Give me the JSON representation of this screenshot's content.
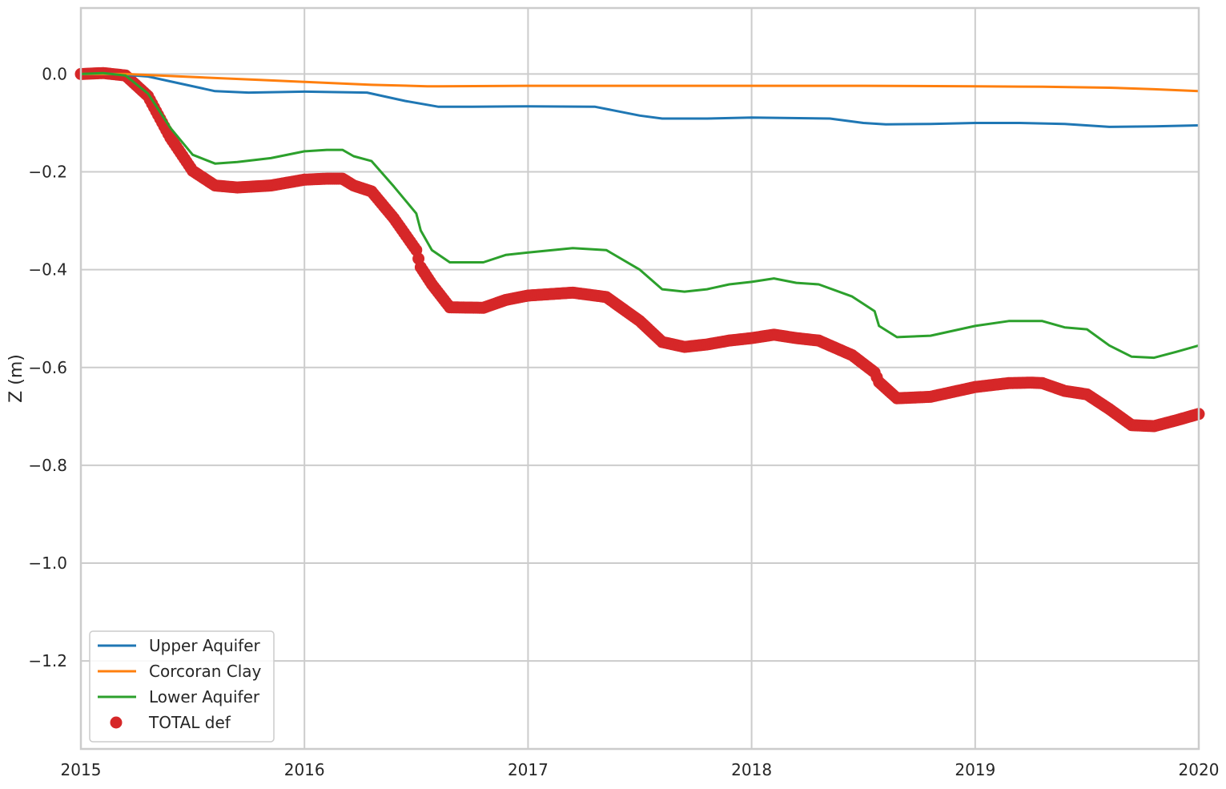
{
  "chart_data": {
    "type": "line",
    "title": "",
    "xlabel": "",
    "ylabel": "Z (m)",
    "xlim": [
      2015,
      2020
    ],
    "ylim": [
      -1.38,
      0.135
    ],
    "x_ticks": [
      "2015",
      "2016",
      "2017",
      "2018",
      "2019",
      "2020"
    ],
    "y_ticks": [
      {
        "value": 0.0,
        "label": "0.0"
      },
      {
        "value": -0.2,
        "label": "−0.2"
      },
      {
        "value": -0.4,
        "label": "−0.4"
      },
      {
        "value": -0.6,
        "label": "−0.6"
      },
      {
        "value": -0.8,
        "label": "−0.8"
      },
      {
        "value": -1.0,
        "label": "−1.0"
      },
      {
        "value": -1.2,
        "label": "−1.2"
      }
    ],
    "grid": true,
    "legend_position": "lower-left",
    "series": [
      {
        "name": "Upper Aquifer",
        "color": "#1f77b4",
        "style": "line",
        "x": [
          2015.0,
          2015.15,
          2015.3,
          2015.45,
          2015.6,
          2015.75,
          2016.0,
          2016.28,
          2016.45,
          2016.6,
          2016.75,
          2017.0,
          2017.3,
          2017.5,
          2017.6,
          2017.8,
          2018.0,
          2018.35,
          2018.5,
          2018.6,
          2018.8,
          2019.0,
          2019.2,
          2019.4,
          2019.6,
          2019.8,
          2020.0
        ],
        "values": [
          0.0,
          0.0,
          -0.005,
          -0.02,
          -0.035,
          -0.038,
          -0.036,
          -0.038,
          -0.055,
          -0.067,
          -0.067,
          -0.066,
          -0.067,
          -0.085,
          -0.091,
          -0.091,
          -0.089,
          -0.091,
          -0.1,
          -0.103,
          -0.102,
          -0.1,
          -0.1,
          -0.102,
          -0.108,
          -0.107,
          -0.105
        ]
      },
      {
        "name": "Corcoran Clay",
        "color": "#ff7f0e",
        "style": "line",
        "x": [
          2015.0,
          2015.2,
          2015.5,
          2015.8,
          2016.0,
          2016.3,
          2016.55,
          2016.6,
          2017.0,
          2017.5,
          2018.0,
          2018.5,
          2019.0,
          2019.3,
          2019.6,
          2019.8,
          2020.0
        ],
        "values": [
          0.0,
          0.0,
          -0.006,
          -0.012,
          -0.016,
          -0.022,
          -0.025,
          -0.025,
          -0.024,
          -0.024,
          -0.024,
          -0.024,
          -0.025,
          -0.026,
          -0.028,
          -0.031,
          -0.035
        ]
      },
      {
        "name": "Lower Aquifer",
        "color": "#2ca02c",
        "style": "line",
        "x": [
          2015.0,
          2015.1,
          2015.2,
          2015.3,
          2015.4,
          2015.5,
          2015.6,
          2015.7,
          2015.85,
          2016.0,
          2016.1,
          2016.17,
          2016.22,
          2016.3,
          2016.4,
          2016.5,
          2016.52,
          2016.57,
          2016.65,
          2016.8,
          2016.9,
          2017.0,
          2017.2,
          2017.35,
          2017.5,
          2017.6,
          2017.7,
          2017.8,
          2017.9,
          2018.0,
          2018.1,
          2018.2,
          2018.3,
          2018.45,
          2018.55,
          2018.57,
          2018.65,
          2018.8,
          2019.0,
          2019.15,
          2019.25,
          2019.3,
          2019.4,
          2019.5,
          2019.6,
          2019.7,
          2019.8,
          2019.9,
          2020.0
        ],
        "values": [
          0.0,
          0.002,
          -0.003,
          -0.04,
          -0.11,
          -0.165,
          -0.183,
          -0.18,
          -0.172,
          -0.158,
          -0.155,
          -0.155,
          -0.168,
          -0.178,
          -0.23,
          -0.285,
          -0.32,
          -0.36,
          -0.385,
          -0.385,
          -0.37,
          -0.365,
          -0.356,
          -0.36,
          -0.4,
          -0.44,
          -0.445,
          -0.44,
          -0.43,
          -0.425,
          -0.418,
          -0.427,
          -0.43,
          -0.455,
          -0.485,
          -0.515,
          -0.538,
          -0.535,
          -0.515,
          -0.505,
          -0.505,
          -0.505,
          -0.518,
          -0.522,
          -0.555,
          -0.578,
          -0.58,
          -0.568,
          -0.555
        ]
      },
      {
        "name": "TOTAL def",
        "color": "#d62728",
        "style": "marker",
        "x": [
          2015.0,
          2015.1,
          2015.2,
          2015.3,
          2015.4,
          2015.5,
          2015.6,
          2015.7,
          2015.85,
          2016.0,
          2016.1,
          2016.17,
          2016.22,
          2016.3,
          2016.4,
          2016.5,
          2016.52,
          2016.57,
          2016.65,
          2016.8,
          2016.9,
          2017.0,
          2017.2,
          2017.35,
          2017.5,
          2017.6,
          2017.7,
          2017.8,
          2017.9,
          2018.0,
          2018.1,
          2018.2,
          2018.3,
          2018.45,
          2018.55,
          2018.57,
          2018.65,
          2018.8,
          2019.0,
          2019.15,
          2019.25,
          2019.3,
          2019.4,
          2019.5,
          2019.6,
          2019.7,
          2019.8,
          2019.9,
          2020.0
        ],
        "values": [
          0.0,
          0.002,
          -0.003,
          -0.045,
          -0.13,
          -0.198,
          -0.228,
          -0.232,
          -0.228,
          -0.216,
          -0.214,
          -0.214,
          -0.228,
          -0.24,
          -0.295,
          -0.36,
          -0.395,
          -0.43,
          -0.477,
          -0.478,
          -0.462,
          -0.453,
          -0.447,
          -0.456,
          -0.505,
          -0.548,
          -0.558,
          -0.553,
          -0.545,
          -0.54,
          -0.533,
          -0.54,
          -0.545,
          -0.575,
          -0.61,
          -0.63,
          -0.663,
          -0.66,
          -0.64,
          -0.632,
          -0.631,
          -0.632,
          -0.648,
          -0.655,
          -0.685,
          -0.718,
          -0.72,
          -0.708,
          -0.695
        ]
      }
    ]
  }
}
